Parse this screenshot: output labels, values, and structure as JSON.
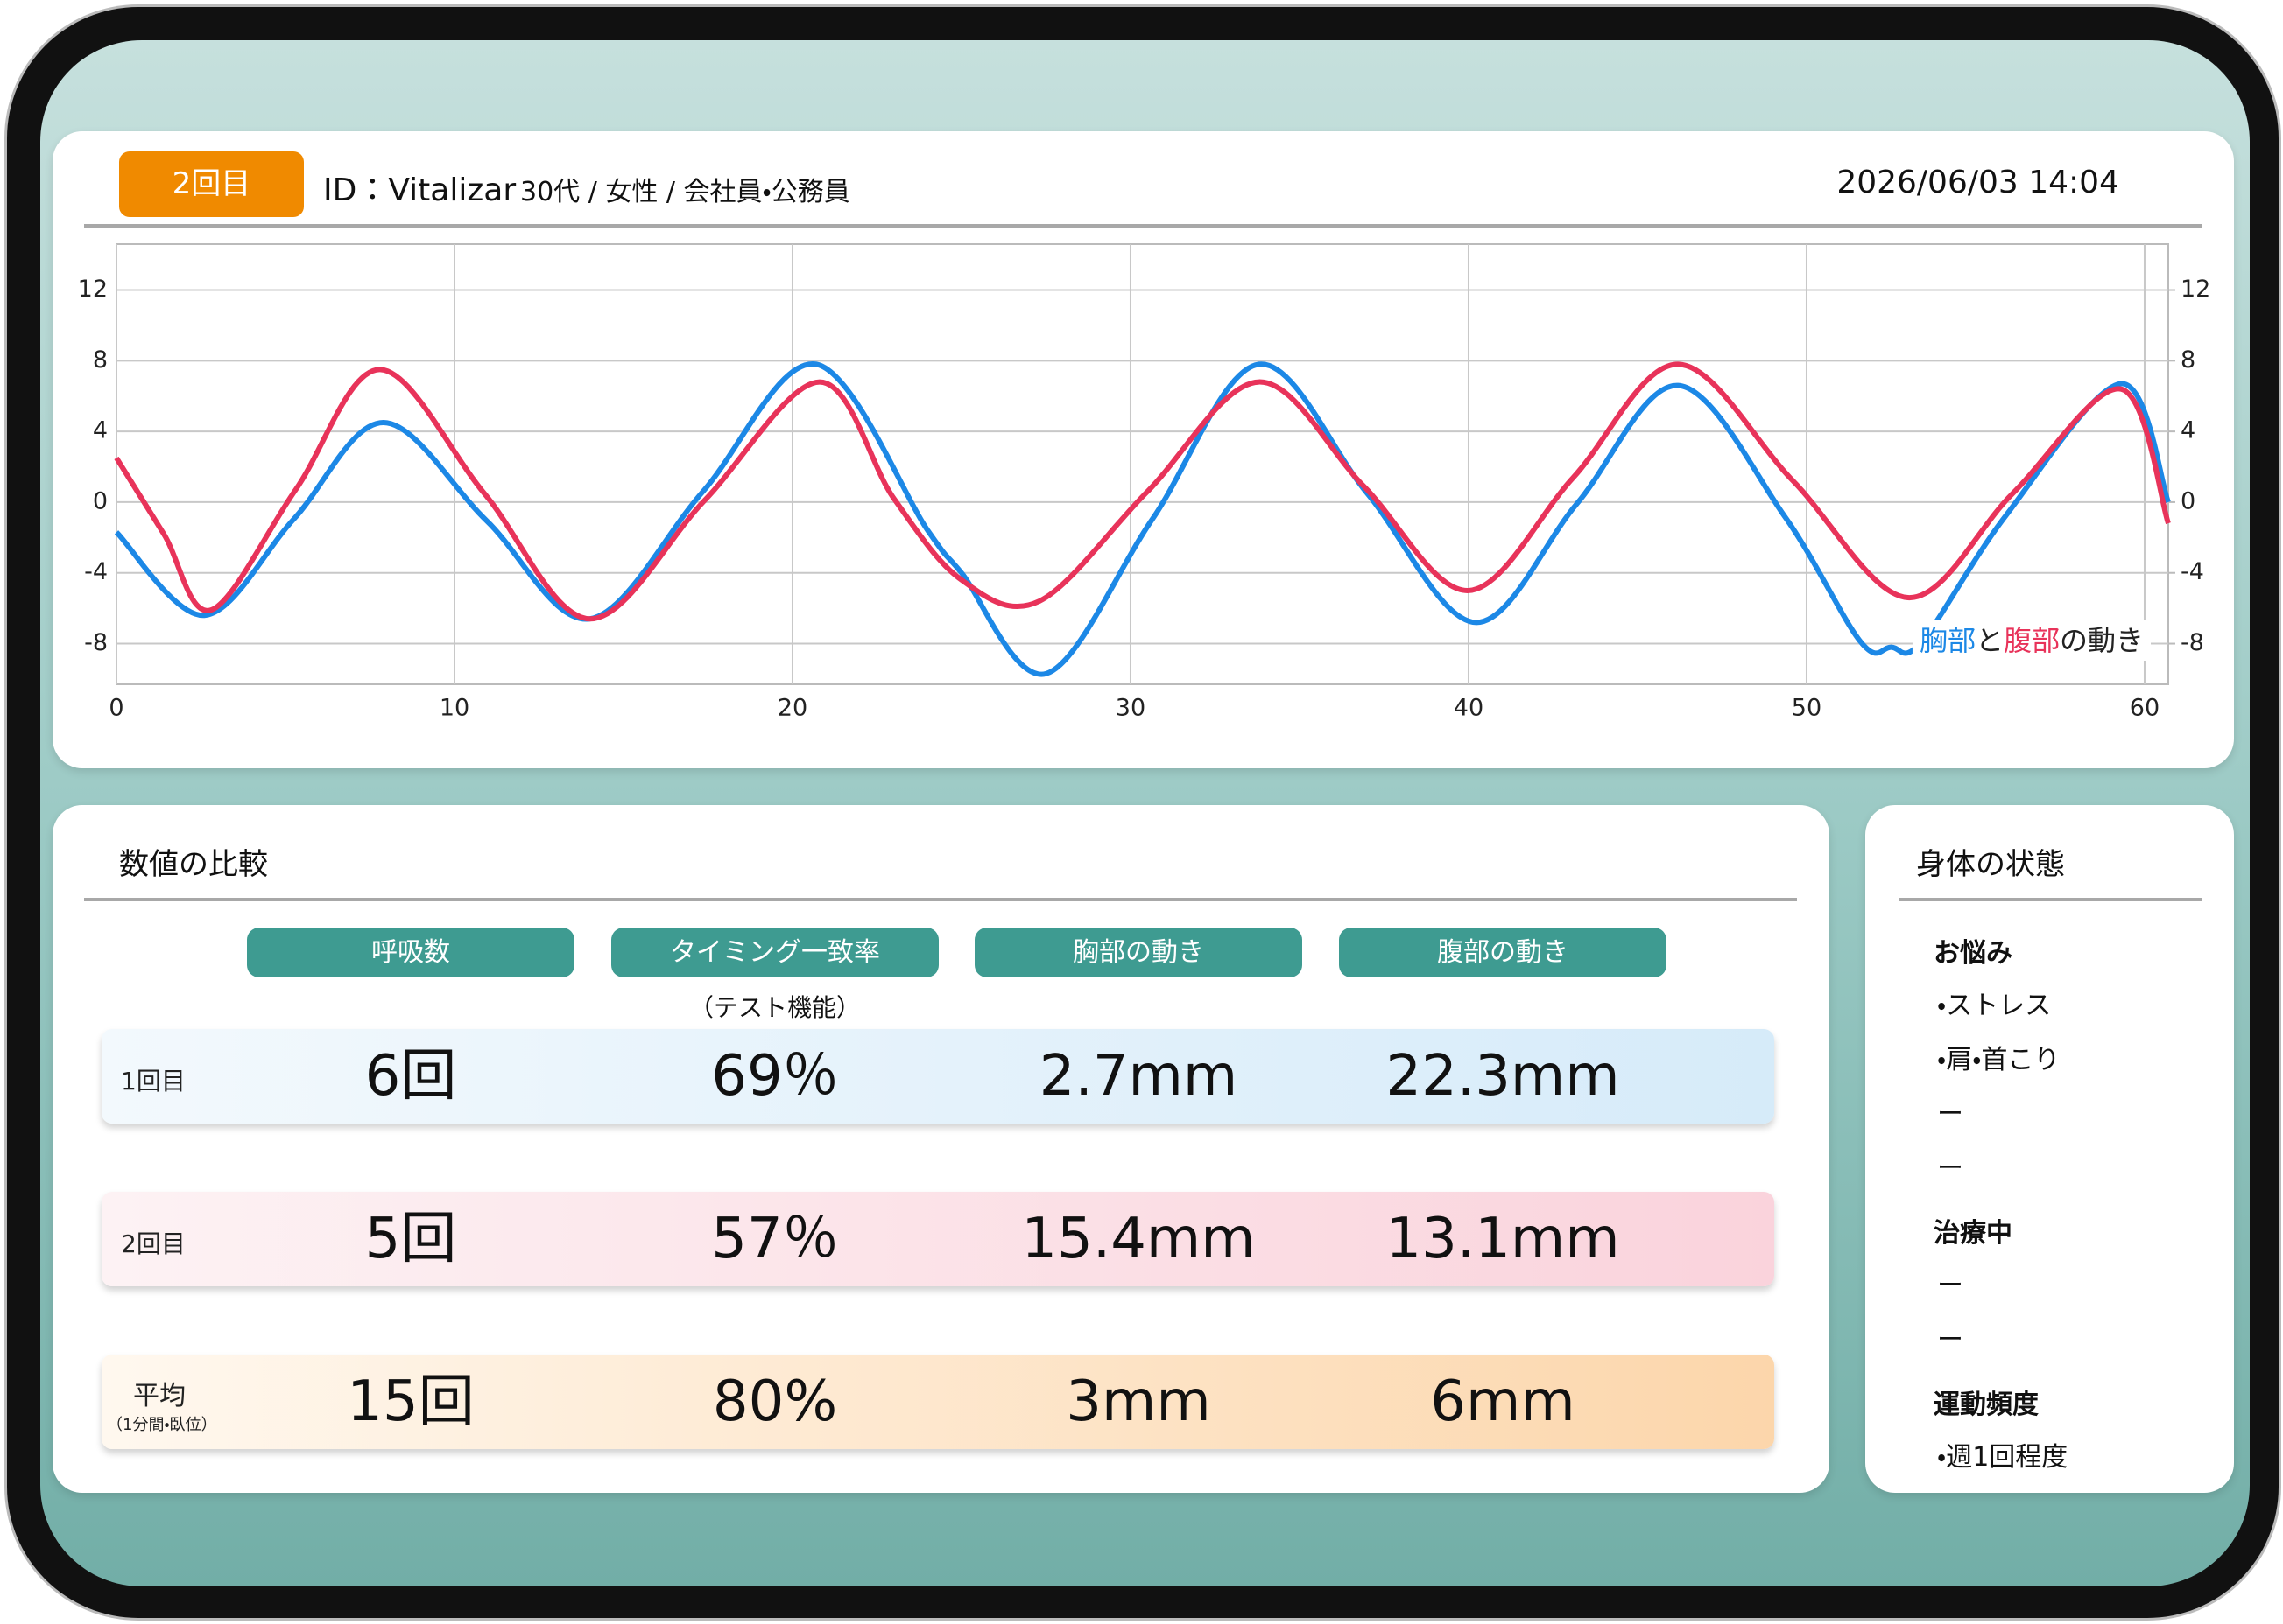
{
  "header": {
    "badge": "2回目",
    "id": "ID：Vitalizar",
    "profile": "30代 / 女性 / 会社員・公務員",
    "datetime": "2026/06/03 14:04"
  },
  "chart_data": {
    "type": "line",
    "xlim": [
      0,
      60.7
    ],
    "xticks": [
      0,
      10,
      20,
      30,
      40,
      50,
      60
    ],
    "ylim": [
      -10.3,
      14.6
    ],
    "yticks": [
      12,
      8,
      4,
      0,
      -4,
      -8
    ],
    "y2lim": [
      -10.3,
      14.6
    ],
    "y2ticks": [
      12,
      8,
      4,
      0,
      -4,
      -8
    ],
    "grid": true,
    "legend": {
      "connector": "と",
      "suffix": "の動き",
      "position": "lower-right"
    },
    "series": [
      {
        "name": "胸部",
        "color": "#1c88e6",
        "x": [
          0,
          2.6,
          5.25,
          7.9,
          10.95,
          14,
          17.35,
          20.7,
          24,
          25,
          27.5,
          30.65,
          33.8,
          37,
          40.2,
          43.2,
          46.2,
          49.35,
          51.6,
          52.5,
          53.4,
          55.9,
          59.3,
          60.7
        ],
        "values": [
          -1.7,
          -6.4,
          -0.95,
          4.5,
          -1.05,
          -6.6,
          0.6,
          7.8,
          -1.6,
          -4,
          -9.7,
          -0.95,
          7.8,
          0.5,
          -6.8,
          -0.1,
          6.6,
          -0.8,
          -7.9,
          -8.2,
          -7.9,
          -0.75,
          6.7,
          0
        ]
      },
      {
        "name": "腹部",
        "color": "#e8335a",
        "x": [
          0,
          1.4,
          2.8,
          5.3,
          7.8,
          10.9,
          14,
          17.4,
          20.8,
          23,
          25,
          27.3,
          30.5,
          33.8,
          36.9,
          40,
          43.1,
          46.2,
          49.6,
          53,
          56.1,
          59.3,
          60.7
        ],
        "values": [
          2.5,
          -1.8,
          -6.1,
          0.7,
          7.5,
          0.45,
          -6.6,
          0.1,
          6.8,
          0.2,
          -4.4,
          -5.6,
          0.6,
          6.8,
          0.9,
          -5,
          1.4,
          7.8,
          1.2,
          -5.4,
          0.5,
          6.4,
          -1.2
        ]
      }
    ]
  },
  "comparison": {
    "title": "数値の比較",
    "columns": [
      "呼吸数",
      "タイミング一致率",
      "胸部の動き",
      "腹部の動き"
    ],
    "column_note": "（テスト機能）",
    "rows": [
      {
        "label": "1回目",
        "values": [
          "6回",
          "69％",
          "2.7mm",
          "22.3mm"
        ]
      },
      {
        "label": "2回目",
        "values": [
          "5回",
          "57％",
          "15.4mm",
          "13.1mm"
        ]
      },
      {
        "label": "平均",
        "sublabel": "（1分間・臥位）",
        "values": [
          "15回",
          "80%",
          "3mm",
          "6mm"
        ]
      }
    ]
  },
  "body_status": {
    "title": "身体の状態",
    "sections": [
      {
        "heading": "お悩み",
        "items": [
          "・ストレス",
          "・肩・首こり",
          "ー",
          "ー"
        ]
      },
      {
        "heading": "治療中",
        "items": [
          "ー",
          "ー"
        ]
      },
      {
        "heading": "運動頻度",
        "items": [
          "・週1回程度"
        ]
      }
    ]
  }
}
